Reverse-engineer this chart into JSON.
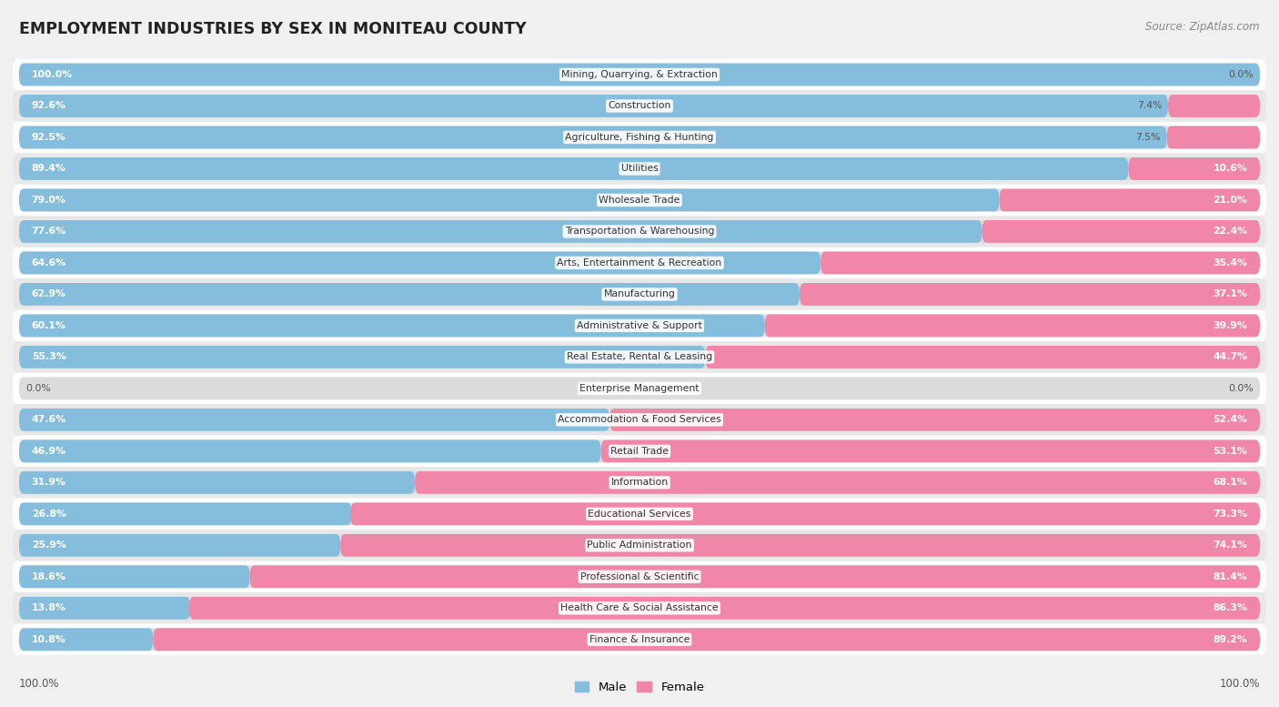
{
  "title": "EMPLOYMENT INDUSTRIES BY SEX IN MONITEAU COUNTY",
  "source": "Source: ZipAtlas.com",
  "industries": [
    "Mining, Quarrying, & Extraction",
    "Construction",
    "Agriculture, Fishing & Hunting",
    "Utilities",
    "Wholesale Trade",
    "Transportation & Warehousing",
    "Arts, Entertainment & Recreation",
    "Manufacturing",
    "Administrative & Support",
    "Real Estate, Rental & Leasing",
    "Enterprise Management",
    "Accommodation & Food Services",
    "Retail Trade",
    "Information",
    "Educational Services",
    "Public Administration",
    "Professional & Scientific",
    "Health Care & Social Assistance",
    "Finance & Insurance"
  ],
  "male_pct": [
    100.0,
    92.6,
    92.5,
    89.4,
    79.0,
    77.6,
    64.6,
    62.9,
    60.1,
    55.3,
    0.0,
    47.6,
    46.9,
    31.9,
    26.8,
    25.9,
    18.6,
    13.8,
    10.8
  ],
  "female_pct": [
    0.0,
    7.4,
    7.5,
    10.6,
    21.0,
    22.4,
    35.4,
    37.1,
    39.9,
    44.7,
    0.0,
    52.4,
    53.1,
    68.1,
    73.3,
    74.1,
    81.4,
    86.3,
    89.2
  ],
  "male_color": "#85bedd",
  "female_color": "#f086a8",
  "bg_color": "#f0f0f0",
  "bar_bg_color": "#dcdcdc",
  "row_alt_color": "#e8e8e8",
  "title_color": "#222222",
  "label_color": "#333333",
  "pct_inside_color": "#ffffff",
  "pct_outside_color": "#555555",
  "axis_label_color": "#555555"
}
